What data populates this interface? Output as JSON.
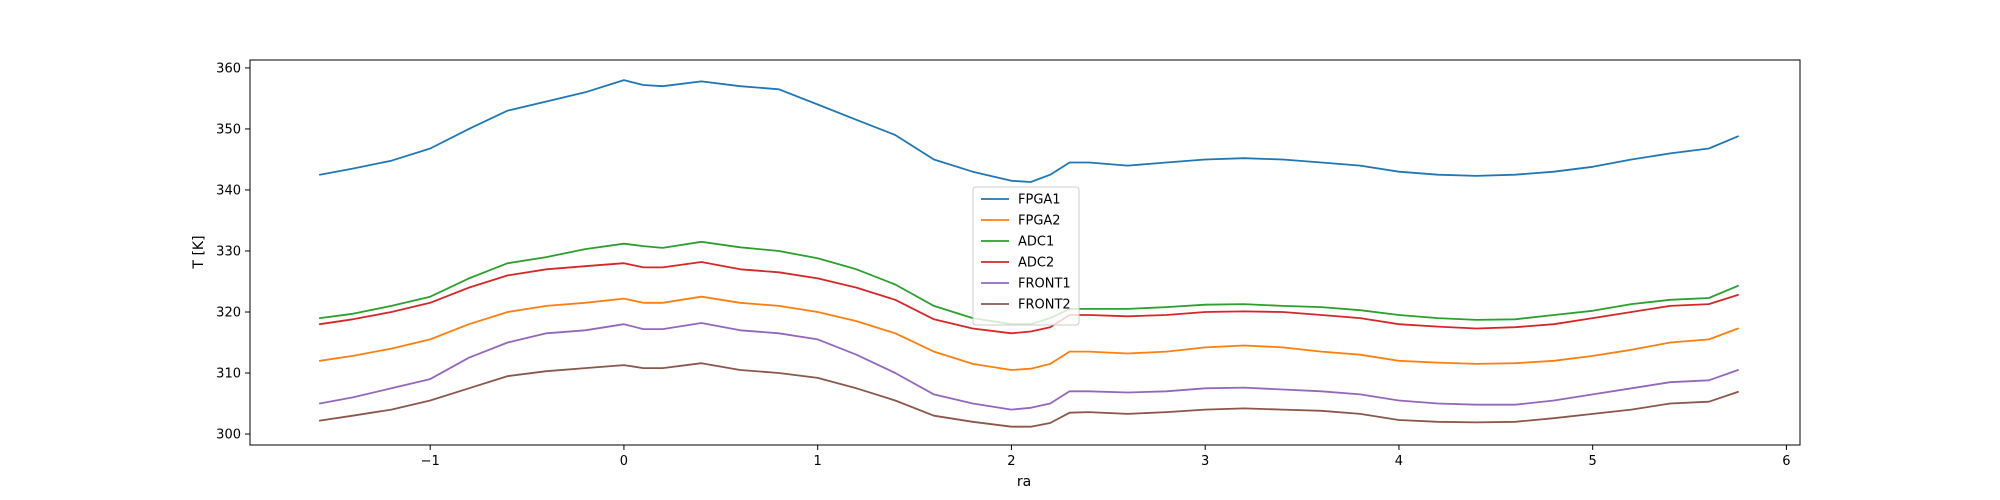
{
  "chart_data": {
    "type": "line",
    "title": "",
    "xlabel": "ra",
    "ylabel": "T [K]",
    "xlim": [
      -1.93,
      6.07
    ],
    "ylim": [
      298.2,
      361.3
    ],
    "xticks": [
      -1,
      0,
      1,
      2,
      3,
      4,
      5,
      6
    ],
    "xtick_labels": [
      "−1",
      "0",
      "1",
      "2",
      "3",
      "4",
      "5",
      "6"
    ],
    "yticks": [
      300,
      310,
      320,
      330,
      340,
      350,
      360
    ],
    "ytick_labels": [
      "300",
      "310",
      "320",
      "330",
      "340",
      "350",
      "360"
    ],
    "grid": false,
    "legend_position": "center",
    "series": [
      {
        "name": "FPGA1",
        "color": "#1f77b4",
        "x": [
          -1.57,
          -1.4,
          -1.2,
          -1.0,
          -0.8,
          -0.6,
          -0.4,
          -0.2,
          0.0,
          0.1,
          0.2,
          0.4,
          0.6,
          0.8,
          1.0,
          1.2,
          1.4,
          1.6,
          1.8,
          2.0,
          2.1,
          2.2,
          2.3,
          2.4,
          2.6,
          2.8,
          3.0,
          3.2,
          3.4,
          3.6,
          3.8,
          4.0,
          4.2,
          4.4,
          4.6,
          4.8,
          5.0,
          5.2,
          5.4,
          5.6,
          5.75
        ],
        "y": [
          342.5,
          343.5,
          344.8,
          346.8,
          350.0,
          353.0,
          354.5,
          356.0,
          358.0,
          357.2,
          357.0,
          357.8,
          357.0,
          356.5,
          354.0,
          351.5,
          349.0,
          345.0,
          343.0,
          341.5,
          341.3,
          342.5,
          344.5,
          344.5,
          344.0,
          344.5,
          345.0,
          345.2,
          345.0,
          344.5,
          344.0,
          343.0,
          342.5,
          342.3,
          342.5,
          343.0,
          343.8,
          345.0,
          346.0,
          346.8,
          348.8
        ]
      },
      {
        "name": "FPGA2",
        "color": "#ff7f0e",
        "x": [
          -1.57,
          -1.4,
          -1.2,
          -1.0,
          -0.8,
          -0.6,
          -0.4,
          -0.2,
          0.0,
          0.1,
          0.2,
          0.4,
          0.6,
          0.8,
          1.0,
          1.2,
          1.4,
          1.6,
          1.8,
          2.0,
          2.1,
          2.2,
          2.3,
          2.4,
          2.6,
          2.8,
          3.0,
          3.2,
          3.4,
          3.6,
          3.8,
          4.0,
          4.2,
          4.4,
          4.6,
          4.8,
          5.0,
          5.2,
          5.4,
          5.6,
          5.75
        ],
        "y": [
          312.0,
          312.8,
          314.0,
          315.5,
          318.0,
          320.0,
          321.0,
          321.5,
          322.2,
          321.5,
          321.5,
          322.5,
          321.5,
          321.0,
          320.0,
          318.5,
          316.5,
          313.5,
          311.5,
          310.5,
          310.7,
          311.5,
          313.5,
          313.5,
          313.2,
          313.5,
          314.2,
          314.5,
          314.2,
          313.5,
          313.0,
          312.0,
          311.7,
          311.5,
          311.6,
          312.0,
          312.8,
          313.8,
          315.0,
          315.5,
          317.3
        ]
      },
      {
        "name": "ADC1",
        "color": "#2ca02c",
        "x": [
          -1.57,
          -1.4,
          -1.2,
          -1.0,
          -0.8,
          -0.6,
          -0.4,
          -0.2,
          0.0,
          0.1,
          0.2,
          0.4,
          0.6,
          0.8,
          1.0,
          1.2,
          1.4,
          1.6,
          1.8,
          2.0,
          2.1,
          2.2,
          2.3,
          2.4,
          2.6,
          2.8,
          3.0,
          3.2,
          3.4,
          3.6,
          3.8,
          4.0,
          4.2,
          4.4,
          4.6,
          4.8,
          5.0,
          5.2,
          5.4,
          5.6,
          5.75
        ],
        "y": [
          319.0,
          319.7,
          321.0,
          322.5,
          325.5,
          328.0,
          329.0,
          330.3,
          331.2,
          330.8,
          330.5,
          331.5,
          330.6,
          330.0,
          328.8,
          327.0,
          324.5,
          321.0,
          319.0,
          318.0,
          318.0,
          319.0,
          320.5,
          320.5,
          320.5,
          320.8,
          321.2,
          321.3,
          321.0,
          320.8,
          320.3,
          319.5,
          319.0,
          318.7,
          318.8,
          319.5,
          320.2,
          321.3,
          322.0,
          322.3,
          324.3
        ]
      },
      {
        "name": "ADC2",
        "color": "#d62728",
        "x": [
          -1.57,
          -1.4,
          -1.2,
          -1.0,
          -0.8,
          -0.6,
          -0.4,
          -0.2,
          0.0,
          0.1,
          0.2,
          0.4,
          0.6,
          0.8,
          1.0,
          1.2,
          1.4,
          1.6,
          1.8,
          2.0,
          2.1,
          2.2,
          2.3,
          2.4,
          2.6,
          2.8,
          3.0,
          3.2,
          3.4,
          3.6,
          3.8,
          4.0,
          4.2,
          4.4,
          4.6,
          4.8,
          5.0,
          5.2,
          5.4,
          5.6,
          5.75
        ],
        "y": [
          318.0,
          318.8,
          320.0,
          321.5,
          324.0,
          326.0,
          327.0,
          327.5,
          328.0,
          327.3,
          327.3,
          328.2,
          327.0,
          326.5,
          325.5,
          324.0,
          322.0,
          318.8,
          317.3,
          316.5,
          316.8,
          317.5,
          319.5,
          319.5,
          319.3,
          319.5,
          320.0,
          320.1,
          320.0,
          319.5,
          319.0,
          318.0,
          317.6,
          317.3,
          317.5,
          318.0,
          319.0,
          320.0,
          321.0,
          321.3,
          322.8
        ]
      },
      {
        "name": "FRONT1",
        "color": "#9467bd",
        "x": [
          -1.57,
          -1.4,
          -1.2,
          -1.0,
          -0.8,
          -0.6,
          -0.4,
          -0.2,
          0.0,
          0.1,
          0.2,
          0.4,
          0.6,
          0.8,
          1.0,
          1.2,
          1.4,
          1.6,
          1.8,
          2.0,
          2.1,
          2.2,
          2.3,
          2.4,
          2.6,
          2.8,
          3.0,
          3.2,
          3.4,
          3.6,
          3.8,
          4.0,
          4.2,
          4.4,
          4.6,
          4.8,
          5.0,
          5.2,
          5.4,
          5.6,
          5.75
        ],
        "y": [
          305.0,
          306.0,
          307.5,
          309.0,
          312.5,
          315.0,
          316.5,
          317.0,
          318.0,
          317.2,
          317.2,
          318.2,
          317.0,
          316.5,
          315.5,
          313.0,
          310.0,
          306.5,
          305.0,
          304.0,
          304.3,
          305.0,
          307.0,
          307.0,
          306.8,
          307.0,
          307.5,
          307.6,
          307.3,
          307.0,
          306.5,
          305.5,
          305.0,
          304.8,
          304.8,
          305.5,
          306.5,
          307.5,
          308.5,
          308.8,
          310.5
        ]
      },
      {
        "name": "FRONT2",
        "color": "#8c564b",
        "x": [
          -1.57,
          -1.4,
          -1.2,
          -1.0,
          -0.8,
          -0.6,
          -0.4,
          -0.2,
          0.0,
          0.1,
          0.2,
          0.4,
          0.6,
          0.8,
          1.0,
          1.2,
          1.4,
          1.6,
          1.8,
          2.0,
          2.1,
          2.2,
          2.3,
          2.4,
          2.6,
          2.8,
          3.0,
          3.2,
          3.4,
          3.6,
          3.8,
          4.0,
          4.2,
          4.4,
          4.6,
          4.8,
          5.0,
          5.2,
          5.4,
          5.6,
          5.75
        ],
        "y": [
          302.2,
          303.0,
          304.0,
          305.5,
          307.5,
          309.5,
          310.3,
          310.8,
          311.3,
          310.8,
          310.8,
          311.6,
          310.5,
          310.0,
          309.2,
          307.5,
          305.5,
          303.0,
          302.0,
          301.2,
          301.2,
          301.8,
          303.5,
          303.6,
          303.3,
          303.6,
          304.0,
          304.2,
          304.0,
          303.8,
          303.3,
          302.3,
          302.0,
          301.9,
          302.0,
          302.6,
          303.3,
          304.0,
          305.0,
          305.3,
          306.9
        ]
      }
    ]
  }
}
